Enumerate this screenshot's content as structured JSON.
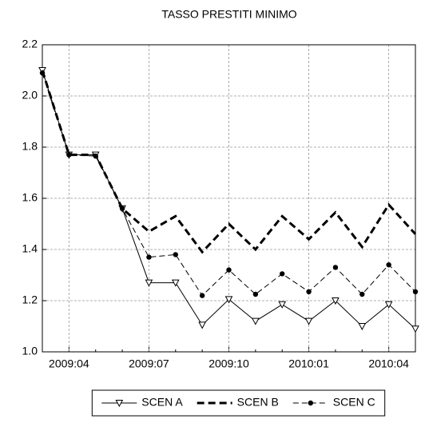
{
  "chart_data": {
    "type": "line",
    "title": "TASSO PRESTITI MINIMO",
    "categories": [
      null,
      "2009:04",
      null,
      null,
      "2009:07",
      null,
      null,
      "2009:10",
      null,
      null,
      "2010:01",
      null,
      null,
      "2010:04",
      null
    ],
    "ylim": [
      1.0,
      2.2
    ],
    "yticks": [
      {
        "value": 1.0,
        "label": "1.0"
      },
      {
        "value": 1.2,
        "label": "1.2"
      },
      {
        "value": 1.4,
        "label": "1.4"
      },
      {
        "value": 1.6,
        "label": "1.6"
      },
      {
        "value": 1.8,
        "label": "1.8"
      },
      {
        "value": 2.0,
        "label": "2.0"
      },
      {
        "value": 2.2,
        "label": "2.2"
      }
    ],
    "grid": true,
    "legend": "bottom",
    "series": [
      {
        "name": "SCEN A",
        "color": "#000000",
        "line_style": "solid",
        "marker": "triangle-down",
        "values": [
          2.1,
          1.77,
          1.77,
          1.56,
          1.27,
          1.27,
          1.105,
          1.205,
          1.12,
          1.185,
          1.12,
          1.2,
          1.1,
          1.185,
          1.09
        ]
      },
      {
        "name": "SCEN B",
        "color": "#000000",
        "line_style": "thick-dash",
        "marker": "none",
        "values": [
          2.1,
          1.77,
          1.77,
          1.56,
          1.47,
          1.53,
          1.39,
          1.5,
          1.4,
          1.53,
          1.44,
          1.545,
          1.41,
          1.575,
          1.46
        ]
      },
      {
        "name": "SCEN C",
        "color": "#000000",
        "line_style": "dash",
        "marker": "circle",
        "values": [
          2.09,
          1.77,
          1.765,
          1.56,
          1.37,
          1.38,
          1.22,
          1.32,
          1.225,
          1.305,
          1.235,
          1.33,
          1.225,
          1.34,
          1.235
        ]
      }
    ]
  }
}
